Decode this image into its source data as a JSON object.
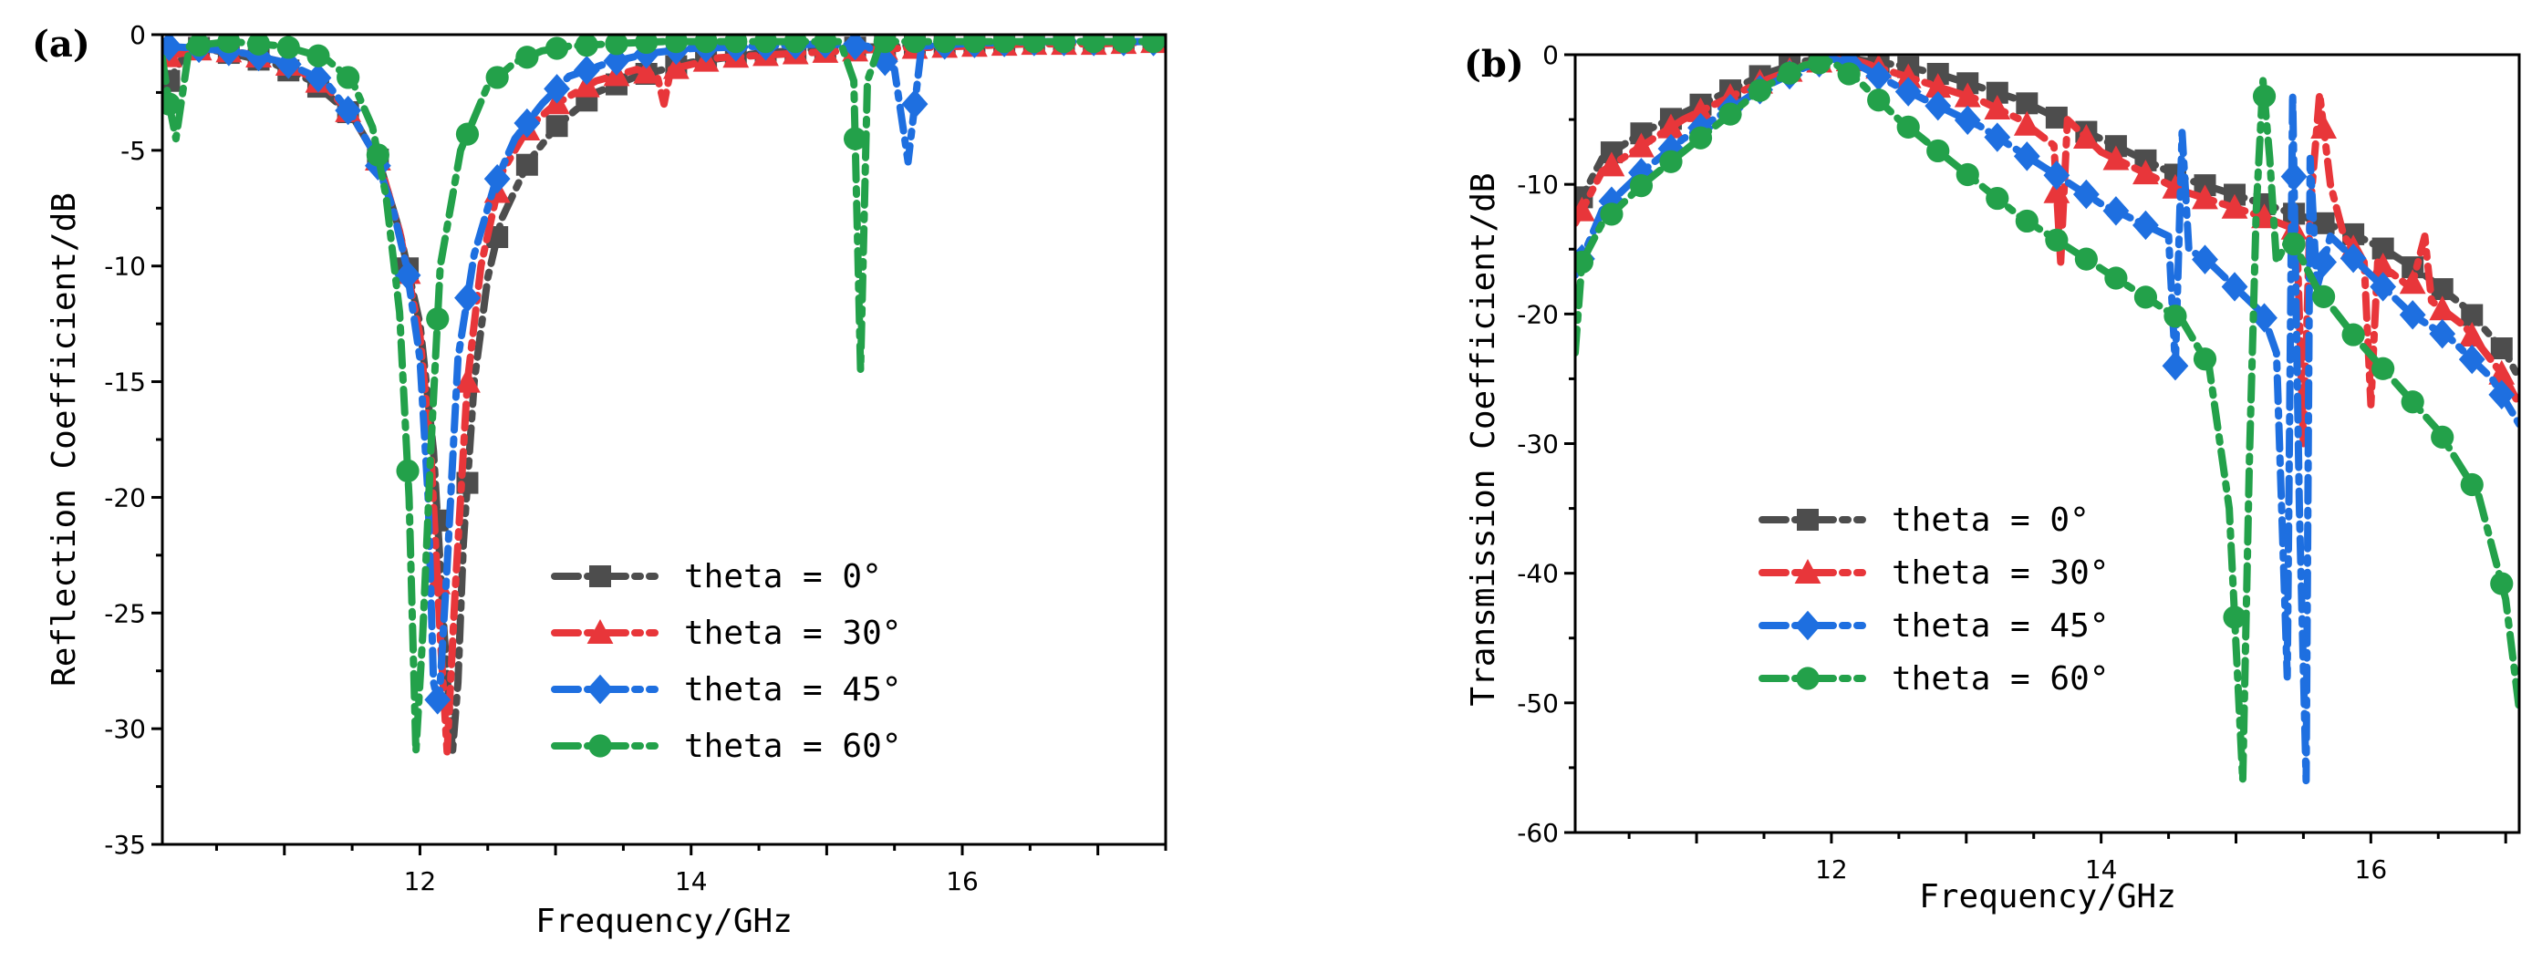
{
  "chart_data": [
    {
      "type": "line",
      "panel_label": "(a)",
      "xlabel": "Frequency/GHz",
      "ylabel": "Reflection Coefficient/dB",
      "xlim": [
        10.1,
        17.5
      ],
      "ylim": [
        -35,
        0
      ],
      "xticks": [
        12,
        14,
        16
      ],
      "yticks": [
        0,
        -5,
        -10,
        -15,
        -20,
        -25,
        -30,
        -35
      ],
      "legend_position": "center-right",
      "series": [
        {
          "name": "theta = 0°",
          "color": "#4d4d4d",
          "marker": "square",
          "x": [
            10.1,
            10.3,
            10.6,
            10.9,
            11.2,
            11.5,
            11.7,
            11.85,
            12.0,
            12.1,
            12.18,
            12.24,
            12.28,
            12.32,
            12.4,
            12.5,
            12.6,
            12.8,
            13.0,
            13.3,
            13.6,
            14.0,
            14.5,
            15.0,
            15.5,
            16.0,
            16.5,
            17.0,
            17.5
          ],
          "y": [
            -2.5,
            -0.5,
            -0.8,
            -1.2,
            -2.0,
            -3.5,
            -5.5,
            -8.5,
            -12.5,
            -18,
            -26,
            -31,
            -28,
            -22,
            -15,
            -10.5,
            -8,
            -5.5,
            -4.0,
            -2.5,
            -1.8,
            -1.2,
            -0.8,
            -0.6,
            -0.5,
            -0.4,
            -0.3,
            -0.3,
            -0.3
          ]
        },
        {
          "name": "theta = 30°",
          "color": "#e8363a",
          "marker": "triangle",
          "x": [
            10.1,
            10.4,
            10.7,
            11.0,
            11.3,
            11.5,
            11.7,
            11.85,
            12.0,
            12.08,
            12.15,
            12.2,
            12.26,
            12.35,
            12.45,
            12.6,
            12.8,
            13.0,
            13.3,
            13.6,
            13.75,
            13.8,
            13.85,
            14.2,
            14.8,
            15.5,
            16.0,
            16.5,
            17.0,
            17.5
          ],
          "y": [
            -1.0,
            -0.6,
            -0.8,
            -1.2,
            -2.2,
            -3.5,
            -5.5,
            -8.5,
            -13,
            -18,
            -26,
            -31,
            -24,
            -15,
            -10,
            -6,
            -4,
            -3,
            -2.0,
            -1.5,
            -1.8,
            -3.0,
            -1.5,
            -1.0,
            -0.8,
            -0.6,
            -0.5,
            -0.4,
            -0.4,
            -0.3
          ]
        },
        {
          "name": "theta = 45°",
          "color": "#1e6fe0",
          "marker": "diamond",
          "x": [
            10.1,
            10.4,
            10.7,
            11.0,
            11.3,
            11.5,
            11.65,
            11.8,
            11.9,
            12.0,
            12.06,
            12.1,
            12.14,
            12.2,
            12.28,
            12.4,
            12.55,
            12.7,
            12.9,
            13.1,
            13.4,
            13.7,
            14.0,
            14.5,
            15.0,
            15.3,
            15.5,
            15.6,
            15.65,
            15.7,
            16.0,
            16.5,
            17.0,
            17.5
          ],
          "y": [
            -0.5,
            -0.6,
            -0.8,
            -1.2,
            -2.0,
            -3.5,
            -5.0,
            -7.5,
            -10,
            -14,
            -20,
            -28,
            -29,
            -23,
            -14,
            -9.5,
            -6.5,
            -4.5,
            -3.0,
            -1.8,
            -1.2,
            -0.8,
            -0.6,
            -0.5,
            -0.4,
            -0.5,
            -1.5,
            -5.5,
            -3.0,
            -0.5,
            -0.4,
            -0.3,
            -0.3,
            -0.3
          ]
        },
        {
          "name": "theta = 60°",
          "color": "#23a14a",
          "marker": "circle",
          "x": [
            10.1,
            10.15,
            10.2,
            10.3,
            10.6,
            11.0,
            11.3,
            11.5,
            11.65,
            11.75,
            11.85,
            11.92,
            11.97,
            12.02,
            12.08,
            12.15,
            12.3,
            12.5,
            12.7,
            12.9,
            13.1,
            13.4,
            13.8,
            14.2,
            14.8,
            15.1,
            15.2,
            15.25,
            15.3,
            15.4,
            15.7,
            16.0,
            16.5,
            17.0,
            17.5
          ],
          "y": [
            -1.0,
            -3.0,
            -4.5,
            -0.5,
            -0.3,
            -0.5,
            -1.0,
            -2.0,
            -4.0,
            -7.0,
            -12,
            -20,
            -31,
            -26,
            -18,
            -10,
            -5,
            -2.2,
            -1.2,
            -0.7,
            -0.5,
            -0.4,
            -0.3,
            -0.3,
            -0.3,
            -0.3,
            -2.0,
            -14.5,
            -2.0,
            -0.3,
            -0.3,
            -0.3,
            -0.3,
            -0.3,
            -0.3
          ]
        }
      ]
    },
    {
      "type": "line",
      "panel_label": "(b)",
      "xlabel": "Frequency/GHz",
      "ylabel": "Transmission Coefficient/dB",
      "xlim": [
        10.1,
        17.1
      ],
      "ylim": [
        -60,
        0
      ],
      "xticks": [
        12,
        14,
        16
      ],
      "yticks": [
        0,
        -10,
        -20,
        -30,
        -40,
        -50,
        -60
      ],
      "legend_position": "center-left",
      "series": [
        {
          "name": "theta = 0°",
          "color": "#4d4d4d",
          "marker": "square",
          "x": [
            10.1,
            10.3,
            10.6,
            10.9,
            11.2,
            11.5,
            11.8,
            12.0,
            12.2,
            12.5,
            12.8,
            13.1,
            13.4,
            13.7,
            14.0,
            14.3,
            14.6,
            14.9,
            15.2,
            15.5,
            15.8,
            16.1,
            16.4,
            16.7,
            17.0,
            17.1
          ],
          "y": [
            -12,
            -8,
            -6,
            -4.5,
            -3,
            -1.5,
            -0.5,
            -0.3,
            -0.4,
            -0.8,
            -1.5,
            -2.5,
            -3.5,
            -5,
            -6.5,
            -8,
            -9.5,
            -10.5,
            -11.5,
            -12.5,
            -13.5,
            -15,
            -17,
            -19.5,
            -23,
            -25
          ]
        },
        {
          "name": "theta = 30°",
          "color": "#e8363a",
          "marker": "triangle",
          "x": [
            10.1,
            10.3,
            10.6,
            10.9,
            11.2,
            11.5,
            11.8,
            12.0,
            12.2,
            12.5,
            12.8,
            13.1,
            13.4,
            13.65,
            13.7,
            13.75,
            14.0,
            14.3,
            14.6,
            14.9,
            15.2,
            15.45,
            15.5,
            15.55,
            15.62,
            15.7,
            15.8,
            15.95,
            16.0,
            16.05,
            16.3,
            16.4,
            16.45,
            16.7,
            17.0,
            17.1
          ],
          "y": [
            -13,
            -9,
            -7,
            -5,
            -3.5,
            -2,
            -0.8,
            -0.3,
            -0.5,
            -1.5,
            -2.5,
            -3.5,
            -5,
            -7,
            -16,
            -5,
            -7.5,
            -9,
            -10.5,
            -11.5,
            -12.5,
            -13.5,
            -30,
            -12,
            -3,
            -10,
            -14,
            -16,
            -27,
            -16,
            -18,
            -14,
            -19,
            -21,
            -25,
            -27
          ]
        },
        {
          "name": "theta = 45°",
          "color": "#1e6fe0",
          "marker": "diamond",
          "x": [
            10.1,
            10.3,
            10.6,
            10.9,
            11.2,
            11.5,
            11.8,
            12.0,
            12.2,
            12.5,
            12.8,
            13.1,
            13.4,
            13.7,
            14.0,
            14.3,
            14.5,
            14.55,
            14.6,
            14.65,
            14.8,
            15.0,
            15.2,
            15.3,
            15.38,
            15.42,
            15.47,
            15.52,
            15.55,
            15.6,
            15.7,
            16.0,
            16.3,
            16.6,
            16.9,
            17.1
          ],
          "y": [
            -17,
            -12,
            -9,
            -6.5,
            -4.5,
            -2.5,
            -1,
            -0.3,
            -0.8,
            -2.5,
            -4,
            -5.5,
            -7.5,
            -9.5,
            -11.5,
            -13,
            -14,
            -24,
            -6,
            -15,
            -16,
            -18,
            -20,
            -23,
            -48,
            -3,
            -35,
            -56,
            -8,
            -18,
            -14,
            -17,
            -20,
            -22,
            -25,
            -28.5
          ]
        },
        {
          "name": "theta = 60°",
          "color": "#23a14a",
          "marker": "circle",
          "x": [
            10.1,
            10.15,
            10.3,
            10.6,
            10.9,
            11.2,
            11.5,
            11.8,
            12.0,
            12.2,
            12.5,
            12.8,
            13.1,
            13.4,
            13.7,
            14.0,
            14.3,
            14.6,
            14.8,
            14.95,
            15.05,
            15.1,
            15.15,
            15.2,
            15.25,
            15.3,
            15.4,
            15.6,
            15.9,
            16.2,
            16.5,
            16.8,
            17.0,
            17.1
          ],
          "y": [
            -23,
            -16,
            -13,
            -10,
            -7.5,
            -5,
            -2.5,
            -0.8,
            -0.5,
            -2,
            -5,
            -7.5,
            -10,
            -12.5,
            -14.5,
            -16.5,
            -18.5,
            -20.5,
            -24,
            -35,
            -56,
            -31,
            -12,
            -2,
            -8,
            -16,
            -14,
            -18,
            -22,
            -25.5,
            -29,
            -34,
            -42,
            -50.5
          ]
        }
      ]
    }
  ]
}
